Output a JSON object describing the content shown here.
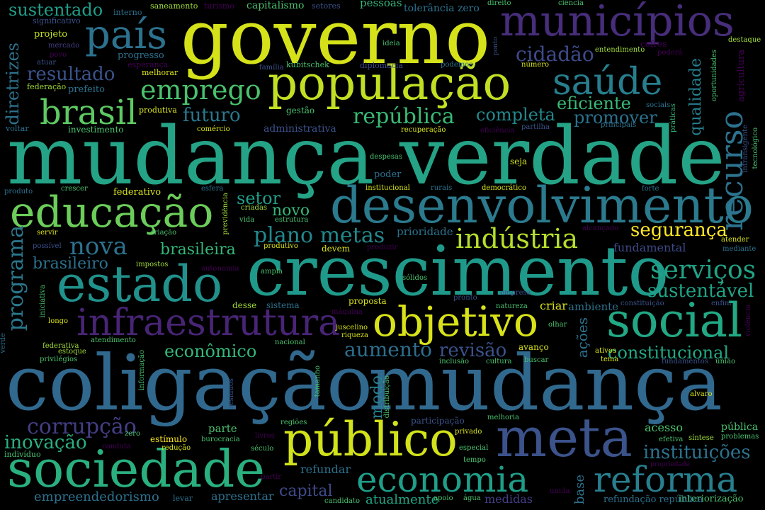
{
  "palette": {
    "background": "#000000",
    "yellow": "#d8e219",
    "lime": "#a0da39",
    "green": "#4ac16d",
    "teal_green": "#1fa187",
    "teal": "#277f8e",
    "blue": "#365c8d",
    "indigo": "#46327e",
    "purple": "#440154"
  },
  "words": [
    {
      "text": "mudança verdade"
    },
    {
      "text": "coligação"
    },
    {
      "text": "mudança"
    },
    {
      "text": "crescimento"
    },
    {
      "text": "governo"
    },
    {
      "text": "desenvolvimento"
    },
    {
      "text": "população"
    },
    {
      "text": "municípios"
    },
    {
      "text": "educação"
    },
    {
      "text": "estado"
    },
    {
      "text": "sociedade"
    },
    {
      "text": "meta"
    },
    {
      "text": "público"
    },
    {
      "text": "social"
    },
    {
      "text": "infraestrutura"
    },
    {
      "text": "objetivo"
    },
    {
      "text": "economia"
    },
    {
      "text": "reforma"
    },
    {
      "text": "país"
    },
    {
      "text": "saúde"
    },
    {
      "text": "brasil"
    },
    {
      "text": "recurso"
    },
    {
      "text": "emprego"
    },
    {
      "text": "indústria"
    },
    {
      "text": "serviços"
    },
    {
      "text": "programa"
    },
    {
      "text": "nova"
    },
    {
      "text": "plano metas"
    },
    {
      "text": "república"
    },
    {
      "text": "cidadão"
    },
    {
      "text": "corrupção"
    },
    {
      "text": "aumento"
    },
    {
      "text": "revisão"
    },
    {
      "text": "econômico"
    },
    {
      "text": "constitucional"
    },
    {
      "text": "sustentável"
    },
    {
      "text": "segurança"
    },
    {
      "text": "resultado"
    },
    {
      "text": "diretrizes"
    },
    {
      "text": "sustentado"
    },
    {
      "text": "qualidade"
    },
    {
      "text": "futuro"
    },
    {
      "text": "completa"
    },
    {
      "text": "promover"
    },
    {
      "text": "eficiente"
    },
    {
      "text": "inovação"
    },
    {
      "text": "instituições"
    },
    {
      "text": "brasileira"
    },
    {
      "text": "brasileiro"
    },
    {
      "text": "setor"
    },
    {
      "text": "novo"
    },
    {
      "text": "capital"
    },
    {
      "text": "empreendedorismo"
    },
    {
      "text": "apresentar"
    },
    {
      "text": "refundar"
    },
    {
      "text": "atualmente"
    },
    {
      "text": "medidas"
    },
    {
      "text": "base"
    },
    {
      "text": "ações"
    },
    {
      "text": "modo"
    },
    {
      "text": "fundamental"
    },
    {
      "text": "prioridade"
    },
    {
      "text": "administrativa"
    },
    {
      "text": "ambiente"
    },
    {
      "text": "criar"
    },
    {
      "text": "acesso"
    },
    {
      "text": "pública"
    },
    {
      "text": "parte"
    },
    {
      "text": "capitalismo"
    },
    {
      "text": "pessoas"
    },
    {
      "text": "tolerância zero"
    },
    {
      "text": "interiorização"
    },
    {
      "text": "refundação república"
    },
    {
      "text": "saneamento"
    },
    {
      "text": "turismo"
    },
    {
      "text": "setores"
    },
    {
      "text": "interno"
    },
    {
      "text": "significativo"
    },
    {
      "text": "projeto"
    },
    {
      "text": "mercado"
    },
    {
      "text": "povo"
    },
    {
      "text": "atuar"
    },
    {
      "text": "esperança"
    },
    {
      "text": "progresso"
    },
    {
      "text": "melhorar"
    },
    {
      "text": "federação"
    },
    {
      "text": "prefeito"
    },
    {
      "text": "família"
    },
    {
      "text": "kubitschek"
    },
    {
      "text": "diplomacia"
    },
    {
      "text": "podemos"
    },
    {
      "text": "número"
    },
    {
      "text": "ideia"
    },
    {
      "text": "direito"
    },
    {
      "text": "ciência"
    },
    {
      "text": "ponto"
    },
    {
      "text": "cofres"
    },
    {
      "text": "entendimento"
    },
    {
      "text": "poderá"
    },
    {
      "text": "destaque"
    },
    {
      "text": "oportunidades"
    },
    {
      "text": "agricultura"
    },
    {
      "text": "práticas"
    },
    {
      "text": "sociais"
    },
    {
      "text": "principais"
    },
    {
      "text": "produtiva"
    },
    {
      "text": "gestão"
    },
    {
      "text": "voltar"
    },
    {
      "text": "investimento"
    },
    {
      "text": "comércio"
    },
    {
      "text": "recuperação"
    },
    {
      "text": "eficiência"
    },
    {
      "text": "partilha"
    },
    {
      "text": "intransigente"
    },
    {
      "text": "tecnológico"
    },
    {
      "text": "despesas"
    },
    {
      "text": "seja"
    },
    {
      "text": "poder"
    },
    {
      "text": "produto"
    },
    {
      "text": "crescer"
    },
    {
      "text": "federativo"
    },
    {
      "text": "esfera"
    },
    {
      "text": "institucional"
    },
    {
      "text": "rurais"
    },
    {
      "text": "democrático"
    },
    {
      "text": "forte"
    },
    {
      "text": "previdência"
    },
    {
      "text": "criadas"
    },
    {
      "text": "vida"
    },
    {
      "text": "estrutura"
    },
    {
      "text": "servir"
    },
    {
      "text": "criação"
    },
    {
      "text": "produtivo"
    },
    {
      "text": "devem"
    },
    {
      "text": "produzir"
    },
    {
      "text": "alcançado"
    },
    {
      "text": "atender"
    },
    {
      "text": "mediante"
    },
    {
      "text": "possível"
    },
    {
      "text": "impostos"
    },
    {
      "text": "autonomia"
    },
    {
      "text": "ampla"
    },
    {
      "text": "sólidos"
    },
    {
      "text": "empresa"
    },
    {
      "text": "pronto"
    },
    {
      "text": "natureza"
    },
    {
      "text": "constituição"
    },
    {
      "text": "enfim"
    },
    {
      "text": "iniciativa"
    },
    {
      "text": "desse"
    },
    {
      "text": "sistema"
    },
    {
      "text": "proposta"
    },
    {
      "text": "máquina"
    },
    {
      "text": "longo"
    },
    {
      "text": "juscelino"
    },
    {
      "text": "riqueza"
    },
    {
      "text": "olhar"
    },
    {
      "text": "violência"
    },
    {
      "text": "verde"
    },
    {
      "text": "atendimento"
    },
    {
      "text": "federativa"
    },
    {
      "text": "estoque"
    },
    {
      "text": "privilégios"
    },
    {
      "text": "informação"
    },
    {
      "text": "nacional"
    },
    {
      "text": "avanço"
    },
    {
      "text": "ativos"
    },
    {
      "text": "tema"
    },
    {
      "text": "fundamentos"
    },
    {
      "text": "união"
    },
    {
      "text": "inclusão"
    },
    {
      "text": "cultura"
    },
    {
      "text": "buscar"
    },
    {
      "text": "tamanho"
    },
    {
      "text": "resíduos"
    },
    {
      "text": "distribuição"
    },
    {
      "text": "alvaro"
    },
    {
      "text": "regiões"
    },
    {
      "text": "participação"
    },
    {
      "text": "melhoria"
    },
    {
      "text": "zero"
    },
    {
      "text": "estímulo"
    },
    {
      "text": "conduta"
    },
    {
      "text": "redução"
    },
    {
      "text": "burocracia"
    },
    {
      "text": "livres"
    },
    {
      "text": "século"
    },
    {
      "text": "privado"
    },
    {
      "text": "especial"
    },
    {
      "text": "tempo"
    },
    {
      "text": "efetiva"
    },
    {
      "text": "síntese"
    },
    {
      "text": "problemas"
    },
    {
      "text": "indivíduo"
    },
    {
      "text": "propriedade"
    },
    {
      "text": "partir"
    },
    {
      "text": "unida"
    },
    {
      "text": "levar"
    },
    {
      "text": "candidato"
    },
    {
      "text": "apoio"
    },
    {
      "text": "água"
    }
  ]
}
